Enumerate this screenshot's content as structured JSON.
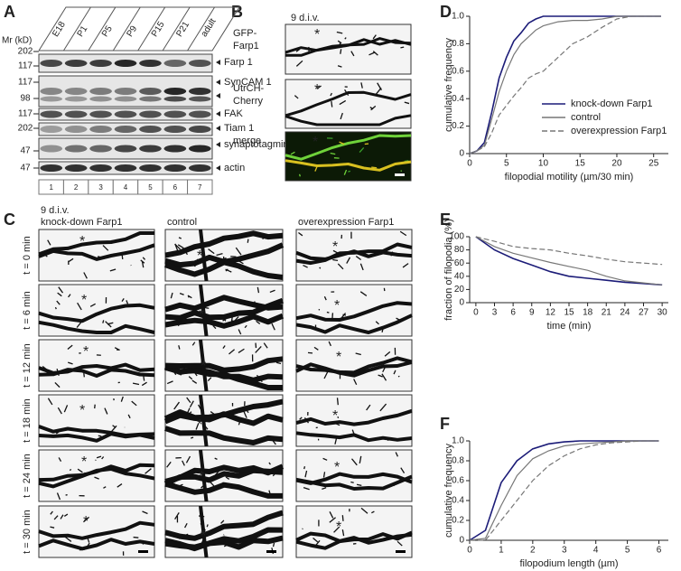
{
  "panel_labels": [
    "A",
    "B",
    "C",
    "D",
    "E",
    "F"
  ],
  "blot": {
    "mr_label": "Mr (kD)",
    "lanes": [
      "E18",
      "P1",
      "P5",
      "P9",
      "P15",
      "P21",
      "adult"
    ],
    "lane_numbers": [
      "1",
      "2",
      "3",
      "4",
      "5",
      "6",
      "7"
    ],
    "rows": [
      {
        "label": "Farp 1",
        "markers": [
          "202",
          "117"
        ]
      },
      {
        "label": "SynCAM 1",
        "markers": [
          "117",
          "98"
        ]
      },
      {
        "label": "FAK",
        "markers": [
          "117"
        ]
      },
      {
        "label": "Tiam 1",
        "markers": [
          "202"
        ]
      },
      {
        "label": "synaptotagmin 1",
        "markers": [
          "47"
        ]
      },
      {
        "label": "actin",
        "markers": [
          "47"
        ]
      }
    ]
  },
  "imaging": {
    "div_label": "9 d.i.v.",
    "marker": "*",
    "channels": [
      {
        "lines": [
          "GFP-",
          "Farp1"
        ],
        "color": "#2e9a3c"
      },
      {
        "lines": [
          "UtrCH-",
          "Cherry"
        ],
        "color": "#c0282a"
      },
      {
        "lines": [
          "merge"
        ],
        "color": "#222222"
      }
    ]
  },
  "timelapse": {
    "div_label": "9 d.i.v.",
    "marker": "*",
    "columns": [
      "knock-down Farp1",
      "control",
      "overexpression Farp1"
    ],
    "rows": [
      "t = 0 min",
      "t = 6 min",
      "t = 12 min",
      "t = 18 min",
      "t = 24 min",
      "t = 30 min"
    ]
  },
  "chart_data": [
    {
      "type": "line",
      "xlabel": "filopodial motility (µm/30 min)",
      "ylabel": "cumulative frequency",
      "x": [
        0,
        1,
        2,
        3,
        4,
        5,
        6,
        7,
        8,
        9,
        10,
        12,
        14,
        16,
        18,
        20,
        22,
        24,
        26
      ],
      "xlim": [
        0,
        27
      ],
      "xticks": [
        0,
        5,
        10,
        15,
        20,
        25
      ],
      "ylim": [
        0,
        1
      ],
      "yticks": [
        0,
        0.2,
        0.4,
        0.6,
        0.8,
        {
          "value": 1,
          "label": "1.0"
        }
      ],
      "legend": "lower right",
      "series": [
        {
          "name": "knock-down Farp1",
          "color": "#1c1c78",
          "linestyle": "solid",
          "values": [
            0,
            0.02,
            0.08,
            0.3,
            0.55,
            0.7,
            0.82,
            0.88,
            0.95,
            0.98,
            1,
            1,
            1,
            1,
            1,
            1,
            1,
            1,
            1
          ]
        },
        {
          "name": "control",
          "color": "#777777",
          "linestyle": "solid",
          "values": [
            0,
            0.02,
            0.06,
            0.25,
            0.45,
            0.6,
            0.72,
            0.8,
            0.85,
            0.9,
            0.93,
            0.96,
            0.97,
            0.97,
            0.98,
            1,
            1,
            1,
            1
          ]
        },
        {
          "name": "overexpression Farp1",
          "color": "#777777",
          "linestyle": "dashed",
          "values": [
            0,
            0.02,
            0.05,
            0.15,
            0.28,
            0.35,
            0.42,
            0.48,
            0.55,
            0.58,
            0.6,
            0.7,
            0.8,
            0.85,
            0.92,
            0.98,
            1,
            1,
            1
          ]
        }
      ]
    },
    {
      "type": "line",
      "xlabel": "time (min)",
      "ylabel": "fraction of filopodia (%)",
      "x": [
        0,
        3,
        6,
        9,
        12,
        15,
        18,
        21,
        24,
        27,
        30
      ],
      "xlim": [
        -1,
        31
      ],
      "xticks": [
        0,
        3,
        6,
        9,
        12,
        15,
        18,
        21,
        24,
        27,
        30
      ],
      "ylim": [
        0,
        100
      ],
      "yticks": [
        0,
        20,
        40,
        60,
        80,
        100
      ],
      "series": [
        {
          "color": "#1c1c78",
          "linestyle": "solid",
          "values": [
            100,
            80,
            67,
            57,
            47,
            40,
            37,
            34,
            31,
            29,
            27
          ]
        },
        {
          "color": "#777777",
          "linestyle": "solid",
          "values": [
            100,
            85,
            75,
            68,
            61,
            55,
            49,
            40,
            33,
            30,
            27
          ]
        },
        {
          "color": "#777777",
          "linestyle": "dashed",
          "values": [
            100,
            93,
            85,
            82,
            80,
            75,
            71,
            66,
            62,
            60,
            58
          ]
        }
      ]
    },
    {
      "type": "line",
      "xlabel": "filopodium length (µm)",
      "ylabel": "cumulative frequency",
      "x": [
        0,
        0.5,
        1,
        1.5,
        2,
        2.5,
        3,
        3.5,
        4,
        4.5,
        5,
        5.5,
        6
      ],
      "xlim": [
        0,
        6.3
      ],
      "xticks": [
        0,
        1,
        2,
        3,
        4,
        5,
        6
      ],
      "ylim": [
        0,
        1
      ],
      "yticks": [
        0,
        0.2,
        0.4,
        0.6,
        0.8,
        {
          "value": 1,
          "label": "1.0"
        }
      ],
      "series": [
        {
          "color": "#1c1c78",
          "linestyle": "solid",
          "values": [
            0,
            0.1,
            0.58,
            0.8,
            0.92,
            0.97,
            0.99,
            1,
            1,
            1,
            1,
            1,
            1
          ]
        },
        {
          "color": "#777777",
          "linestyle": "solid",
          "values": [
            0,
            0.02,
            0.35,
            0.65,
            0.82,
            0.9,
            0.95,
            0.97,
            0.98,
            0.99,
            1,
            1,
            1
          ]
        },
        {
          "color": "#777777",
          "linestyle": "dashed",
          "values": [
            0,
            0,
            0.2,
            0.4,
            0.6,
            0.75,
            0.85,
            0.92,
            0.96,
            0.98,
            0.99,
            1,
            1
          ]
        }
      ]
    }
  ]
}
